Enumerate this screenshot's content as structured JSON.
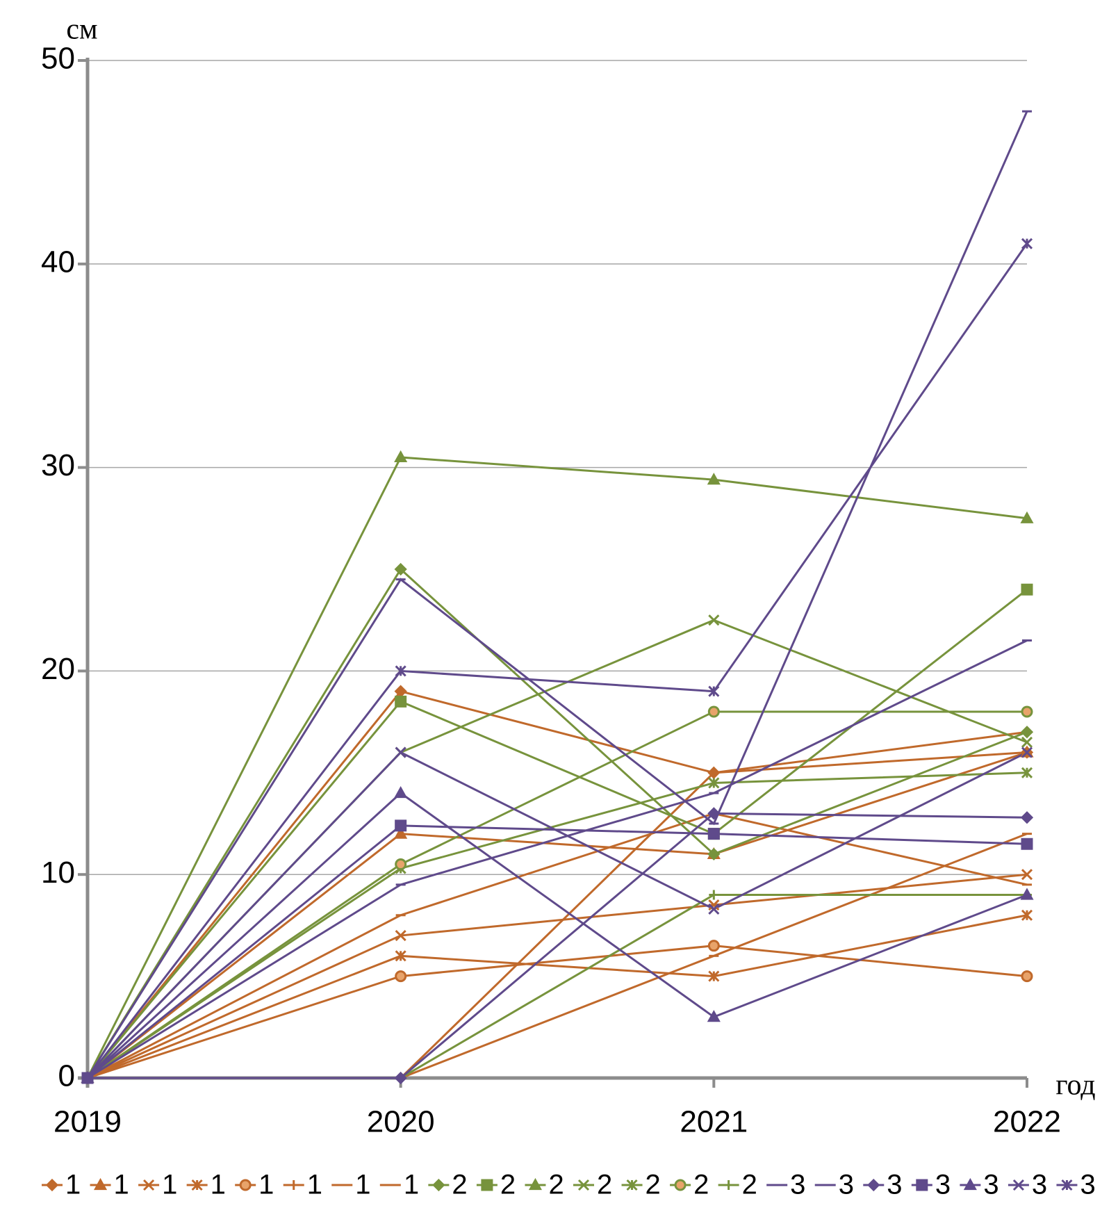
{
  "chart_data": {
    "type": "line",
    "y_label": "см",
    "x_label": "год",
    "categories": [
      "2019",
      "2020",
      "2021",
      "2022"
    ],
    "ylim": [
      0,
      50
    ],
    "yticks": [
      0,
      10,
      20,
      30,
      40,
      50
    ],
    "grid": true,
    "legend": "bottom",
    "series": [
      {
        "name": "1",
        "color": "#c0692b",
        "marker": "diamond",
        "values": [
          0,
          19,
          15,
          16
        ]
      },
      {
        "name": "1",
        "color": "#c0692b",
        "marker": "triangle",
        "values": [
          0,
          12,
          11,
          16
        ]
      },
      {
        "name": "1",
        "color": "#c0692b",
        "marker": "x",
        "values": [
          0,
          7,
          8.5,
          10
        ]
      },
      {
        "name": "1",
        "color": "#c0692b",
        "marker": "star",
        "values": [
          0,
          6,
          5,
          8
        ]
      },
      {
        "name": "1",
        "color": "#c0692b",
        "marker": "circle",
        "values": [
          0,
          5,
          6.5,
          5
        ]
      },
      {
        "name": "1",
        "color": "#c0692b",
        "marker": "plus",
        "values": [
          0,
          0,
          15,
          17
        ]
      },
      {
        "name": "1",
        "color": "#c0692b",
        "marker": "dash",
        "values": [
          0,
          8,
          13,
          9.5
        ]
      },
      {
        "name": "1",
        "color": "#c0692b",
        "marker": "dash",
        "values": [
          0,
          0,
          6,
          12
        ]
      },
      {
        "name": "2",
        "color": "#77933c",
        "marker": "diamond",
        "values": [
          0,
          25,
          11,
          17
        ]
      },
      {
        "name": "2",
        "color": "#77933c",
        "marker": "square",
        "values": [
          0,
          18.5,
          12,
          24
        ]
      },
      {
        "name": "2",
        "color": "#77933c",
        "marker": "triangle",
        "values": [
          0,
          30.5,
          29.4,
          27.5
        ]
      },
      {
        "name": "2",
        "color": "#77933c",
        "marker": "x",
        "values": [
          0,
          16,
          22.5,
          16.5
        ]
      },
      {
        "name": "2",
        "color": "#77933c",
        "marker": "star",
        "values": [
          0,
          10.3,
          14.5,
          15
        ]
      },
      {
        "name": "2",
        "color": "#77933c",
        "marker": "circle",
        "values": [
          0,
          10.5,
          18,
          18
        ]
      },
      {
        "name": "2",
        "color": "#77933c",
        "marker": "plus",
        "values": [
          0,
          0,
          9,
          9
        ]
      },
      {
        "name": "3",
        "color": "#5f4a8b",
        "marker": "dash",
        "values": [
          0,
          24.5,
          12.5,
          47.5
        ]
      },
      {
        "name": "3",
        "color": "#5f4a8b",
        "marker": "dash",
        "values": [
          0,
          9.5,
          14,
          21.5
        ]
      },
      {
        "name": "3",
        "color": "#5f4a8b",
        "marker": "diamond",
        "values": [
          0,
          0,
          13,
          12.8
        ]
      },
      {
        "name": "3",
        "color": "#5f4a8b",
        "marker": "square",
        "values": [
          0,
          12.4,
          12,
          11.5
        ]
      },
      {
        "name": "3",
        "color": "#5f4a8b",
        "marker": "triangle",
        "values": [
          0,
          14,
          3,
          9
        ]
      },
      {
        "name": "3",
        "color": "#5f4a8b",
        "marker": "x",
        "values": [
          0,
          16,
          8.3,
          16
        ]
      },
      {
        "name": "3",
        "color": "#5f4a8b",
        "marker": "star",
        "values": [
          0,
          20,
          19,
          41
        ]
      }
    ]
  }
}
